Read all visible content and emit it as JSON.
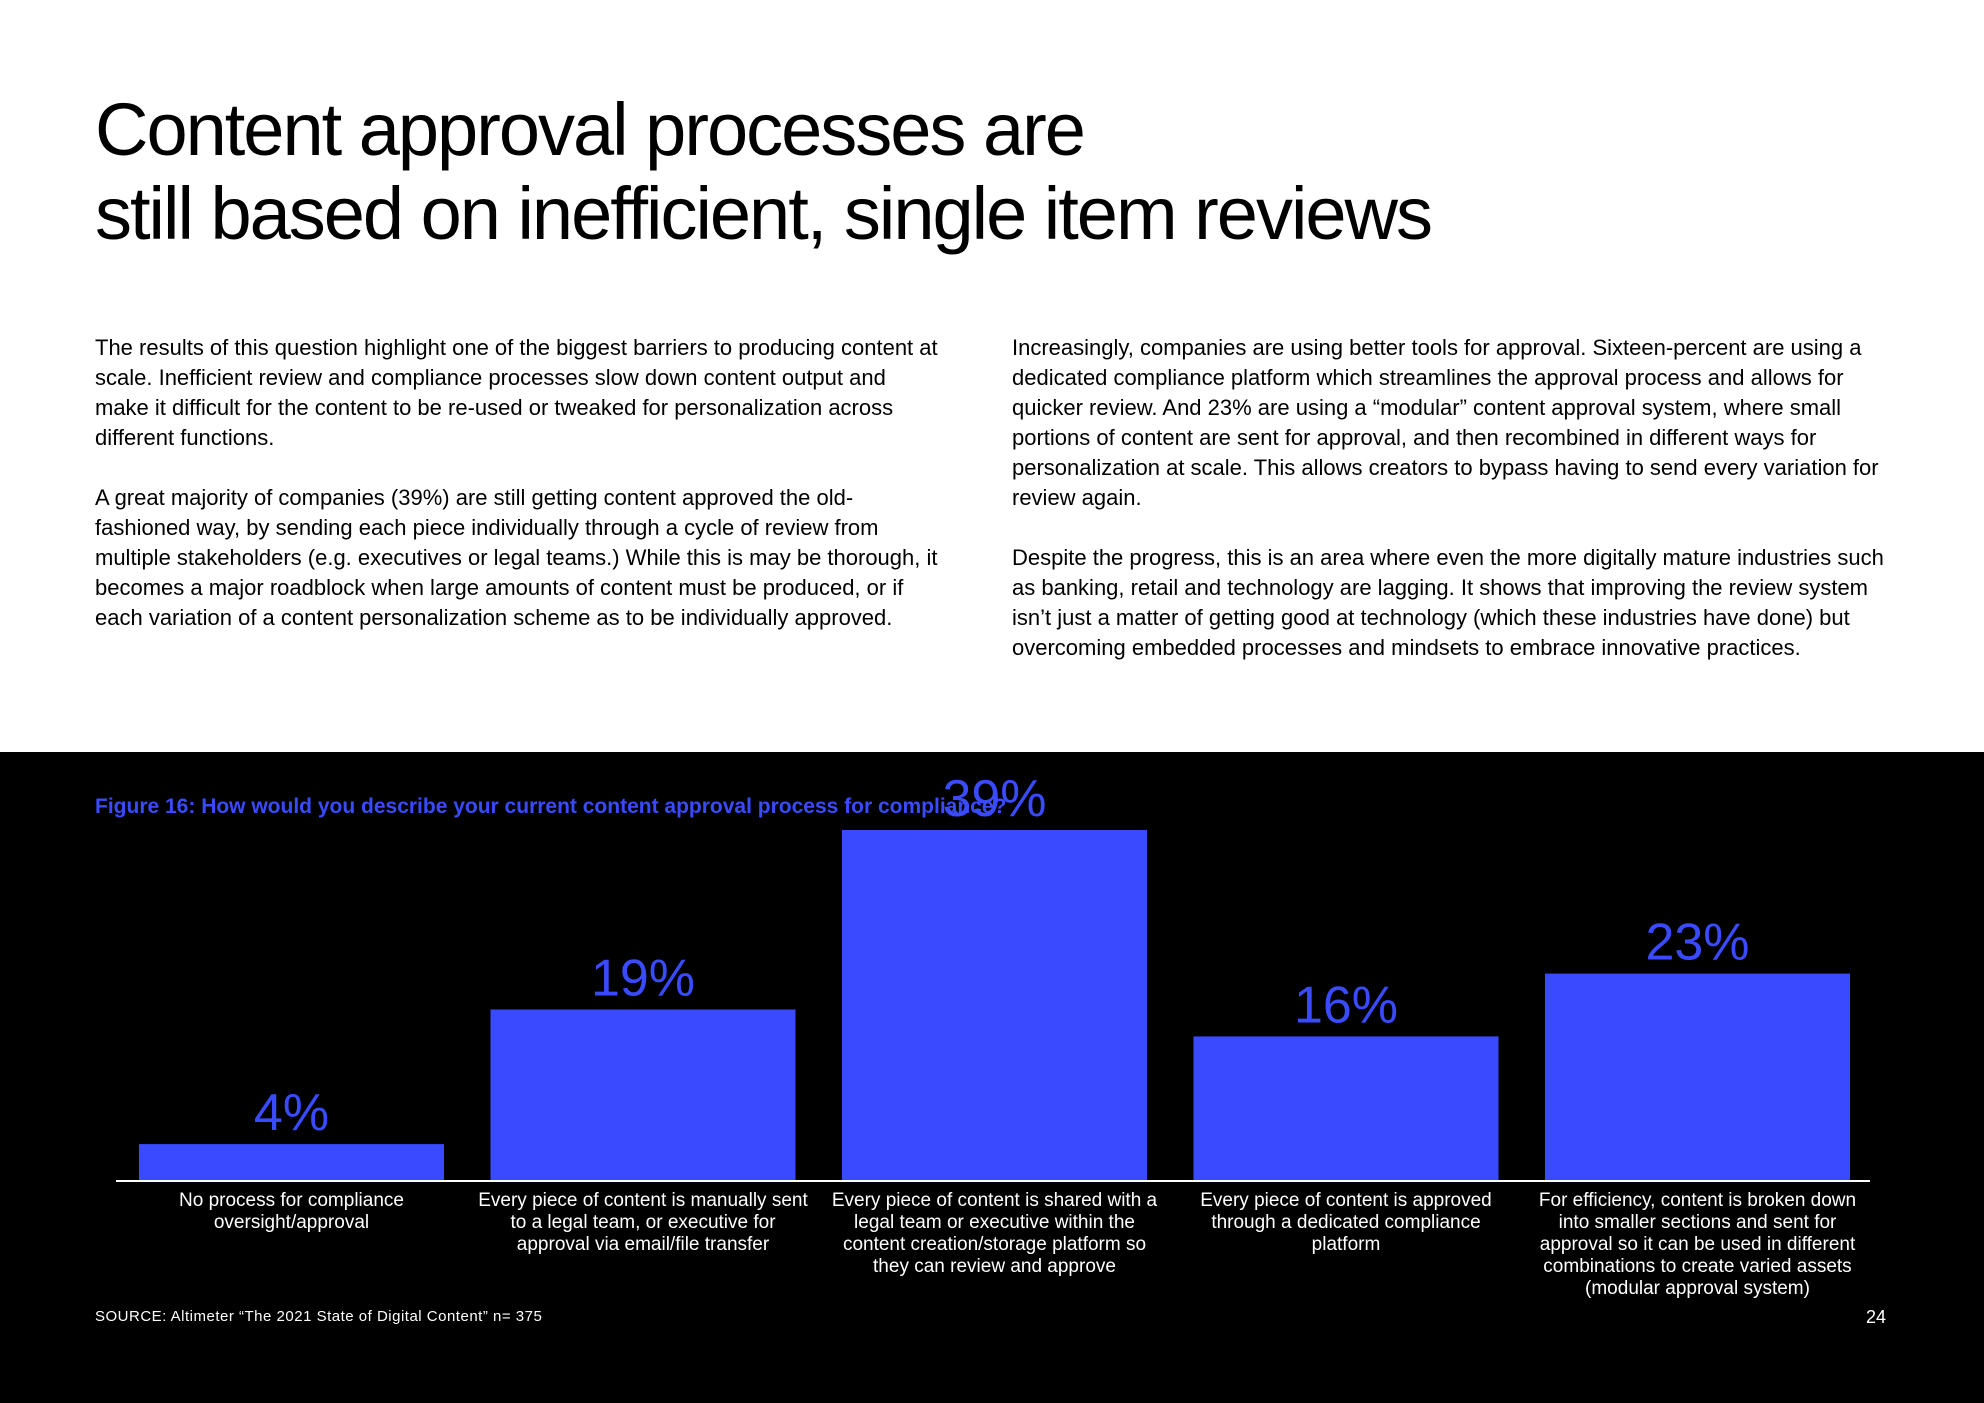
{
  "title": {
    "line1": "Content approval processes are",
    "line2": "still based on inefficient, single item reviews"
  },
  "body": {
    "left": [
      "The results of this question highlight one of the biggest barriers to producing content at scale. Inefficient review and compliance processes slow down content output and make it difficult for the content to be re-used or tweaked for personalization across different functions.",
      "A great majority of companies (39%) are still getting content approved the old-fashioned way, by sending each piece individually through a cycle of review from multiple stakeholders (e.g. executives or legal teams.) While this is may be thorough, it becomes a major roadblock when large amounts of content must be produced, or if each variation of a content personalization scheme as to be individually approved."
    ],
    "right": [
      "Increasingly, companies are using better tools for approval. Sixteen-percent are using a dedicated compliance platform which streamlines the approval process and allows for quicker review. And 23% are using a “modular” content approval system, where small portions of content are sent for approval, and then recombined in different ways for personalization at scale. This allows creators to bypass having to send every variation for review again.",
      "Despite the progress, this is an area where even the more digitally mature industries such as banking, retail and technology are lagging. It shows that improving the review system isn’t just  a matter of getting good at technology (which these industries have done) but overcoming embedded processes and mindsets to embrace innovative practices."
    ]
  },
  "figure": {
    "title": "Figure 16: How would you describe your current content approval process for compliance?",
    "source": "SOURCE: Altimeter “The 2021 State of Digital Content” n= 375",
    "page_number": "24"
  },
  "colors": {
    "bar": "#3a4bff",
    "label": "#3a4bff",
    "background": "#000000"
  },
  "chart_data": {
    "type": "bar",
    "title": "Figure 16: How would you describe your current content approval process for compliance?",
    "categories": [
      "No process for compliance oversight/approval",
      "Every piece of content is manually sent to a legal team, or executive for approval via email/file transfer",
      "Every piece of content is shared with a legal team or executive within the content creation/storage platform so they can review and approve",
      "Every piece of content is approved through a dedicated compliance platform",
      "For efficiency, content is broken down into smaller sections and sent for approval so it can be used in different combinations to create varied assets (modular approval system)"
    ],
    "values": [
      4,
      19,
      39,
      16,
      23
    ],
    "labels": [
      "4%",
      "19%",
      "39%",
      "16%",
      "23%"
    ],
    "ylim": [
      0,
      39
    ],
    "xlabel": "",
    "ylabel": "",
    "grid": false
  }
}
